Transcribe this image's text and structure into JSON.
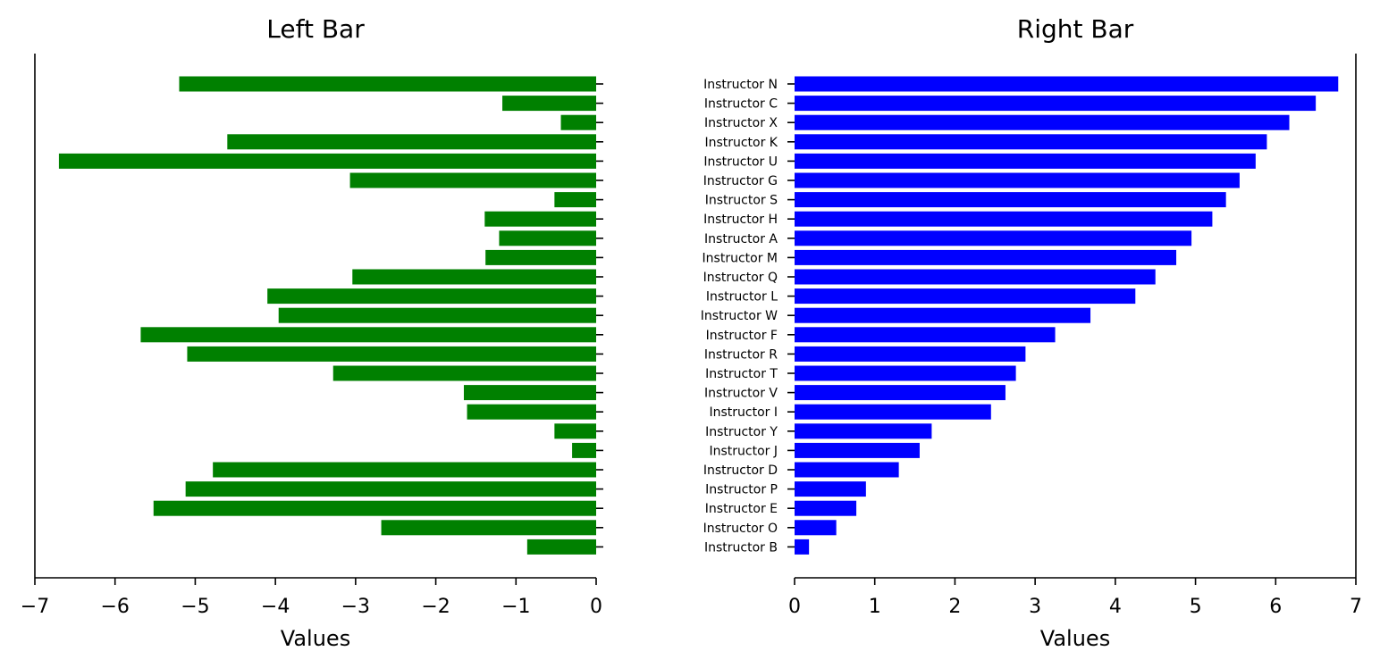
{
  "chart_data": [
    {
      "type": "bar",
      "orientation": "horizontal",
      "title": "Left Bar",
      "xlabel": "Values",
      "ylabel": "",
      "xlim": [
        -7,
        0
      ],
      "xticks": [
        -7,
        -6,
        -5,
        -4,
        -3,
        -2,
        -1,
        0
      ],
      "xtick_labels": [
        "−7",
        "−6",
        "−5",
        "−4",
        "−3",
        "−2",
        "−1",
        "0"
      ],
      "grid": false,
      "color": "#008000",
      "values": [
        -5.2,
        -1.17,
        -0.44,
        -4.6,
        -6.7,
        -3.07,
        -0.52,
        -1.39,
        -1.21,
        -1.38,
        -3.04,
        -4.1,
        -3.96,
        -5.68,
        -5.1,
        -3.28,
        -1.65,
        -1.61,
        -0.52,
        -0.3,
        -4.78,
        -5.12,
        -5.52,
        -2.68,
        -0.86
      ]
    },
    {
      "type": "bar",
      "orientation": "horizontal",
      "title": "Right Bar",
      "xlabel": "Values",
      "ylabel": "",
      "xlim": [
        0,
        7
      ],
      "xticks": [
        0,
        1,
        2,
        3,
        4,
        5,
        6,
        7
      ],
      "xtick_labels": [
        "0",
        "1",
        "2",
        "3",
        "4",
        "5",
        "6",
        "7"
      ],
      "grid": false,
      "color": "#0000ff",
      "categories": [
        "Instructor N",
        "Instructor C",
        "Instructor X",
        "Instructor K",
        "Instructor U",
        "Instructor G",
        "Instructor S",
        "Instructor H",
        "Instructor A",
        "Instructor M",
        "Instructor Q",
        "Instructor L",
        "Instructor W",
        "Instructor F",
        "Instructor R",
        "Instructor T",
        "Instructor V",
        "Instructor I",
        "Instructor Y",
        "Instructor J",
        "Instructor D",
        "Instructor P",
        "Instructor E",
        "Instructor O",
        "Instructor B"
      ],
      "values": [
        6.78,
        6.5,
        6.17,
        5.89,
        5.75,
        5.55,
        5.38,
        5.21,
        4.95,
        4.76,
        4.5,
        4.25,
        3.69,
        3.25,
        2.88,
        2.76,
        2.63,
        2.45,
        1.71,
        1.56,
        1.3,
        0.89,
        0.77,
        0.52,
        0.18
      ]
    }
  ]
}
